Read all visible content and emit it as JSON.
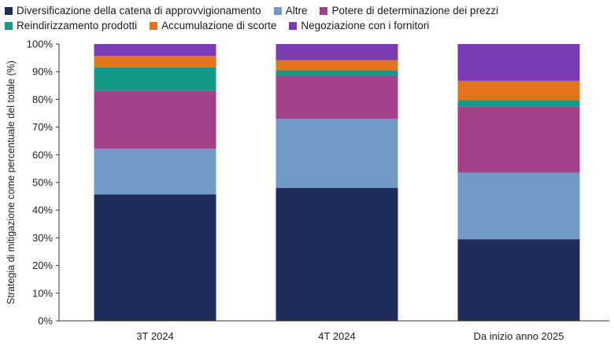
{
  "chart_data": {
    "type": "bar",
    "stacked": true,
    "ylabel": "Strategia di mitigazione come percentuale del totale (%)",
    "xlabel": "",
    "ylim": [
      0,
      100
    ],
    "y_ticks": [
      "0%",
      "10%",
      "20%",
      "30%",
      "40%",
      "50%",
      "60%",
      "70%",
      "80%",
      "90%",
      "100%"
    ],
    "categories": [
      "3T 2024",
      "4T 2024",
      "Da inizio anno 2025"
    ],
    "legend_placement": "top",
    "grid": false,
    "series": [
      {
        "name": "Diversificazione della catena di approvvigionamento",
        "color": "#1f2d5c",
        "values": [
          45.7,
          48.0,
          29.5
        ]
      },
      {
        "name": "Altre",
        "color": "#7399c6",
        "values": [
          16.5,
          25.0,
          24.0
        ]
      },
      {
        "name": "Potere di determinazione dei prezzi",
        "color": "#a3418a",
        "values": [
          21.0,
          15.5,
          24.0
        ]
      },
      {
        "name": "Reindirizzamento prodotti",
        "color": "#159a89",
        "values": [
          8.5,
          2.0,
          2.2
        ]
      },
      {
        "name": "Accumulazione di scorte",
        "color": "#e3731c",
        "values": [
          4.0,
          3.7,
          7.0
        ]
      },
      {
        "name": "Negoziazione con i fornitori",
        "color": "#7b3bb3",
        "values": [
          4.3,
          5.8,
          13.3
        ]
      }
    ],
    "legend_rows": [
      [
        0,
        1,
        2
      ],
      [
        3,
        4,
        5
      ]
    ]
  }
}
